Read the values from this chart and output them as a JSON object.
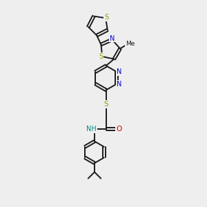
{
  "bg_color": "#eeeeee",
  "bond_color": "#1a1a1a",
  "S_color": "#999900",
  "N_color": "#0000cc",
  "O_color": "#cc0000",
  "NH_color": "#008888",
  "figsize": [
    3.0,
    3.0
  ],
  "dpi": 100,
  "xlim": [
    0,
    10
  ],
  "ylim": [
    0,
    16
  ]
}
